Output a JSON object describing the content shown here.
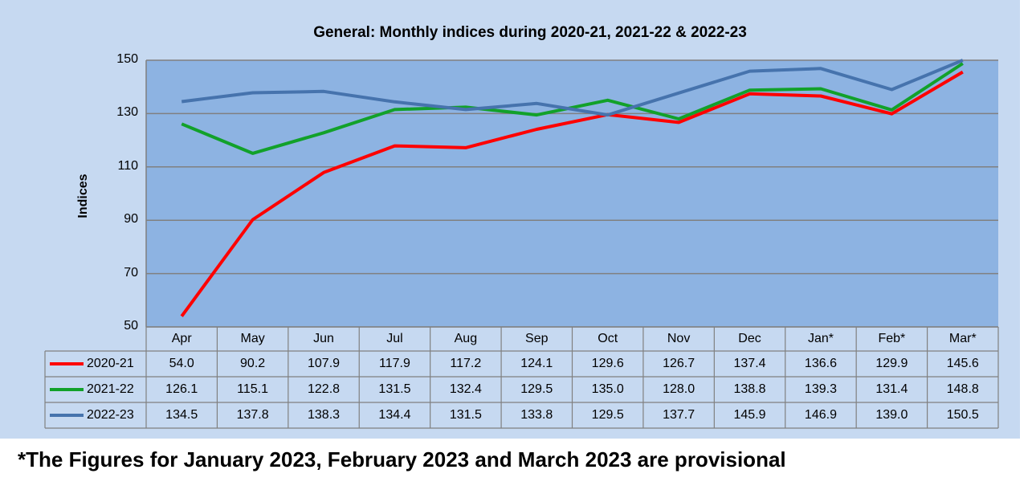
{
  "footnote": "*The Figures for January 2023, February 2023 and March 2023 are provisional",
  "chart_data": {
    "type": "line",
    "title": "General: Monthly indices during 2020-21, 2021-22 & 2022-23",
    "xlabel": "",
    "ylabel": "Indices",
    "ylim": [
      50,
      150
    ],
    "yticks": [
      50,
      70,
      90,
      110,
      130,
      150
    ],
    "grid": true,
    "legend": "data-table",
    "categories": [
      "Apr",
      "May",
      "Jun",
      "Jul",
      "Aug",
      "Sep",
      "Oct",
      "Nov",
      "Dec",
      "Jan*",
      "Feb*",
      "Mar*"
    ],
    "series": [
      {
        "name": "2020-21",
        "color": "#ff0000",
        "values": [
          54.0,
          90.2,
          107.9,
          117.9,
          117.2,
          124.1,
          129.6,
          126.7,
          137.4,
          136.6,
          129.9,
          145.6
        ],
        "labels": [
          "54.0",
          "90.2",
          "107.9",
          "117.9",
          "117.2",
          "124.1",
          "129.6",
          "126.7",
          "137.4",
          "136.6",
          "129.9",
          "145.6"
        ]
      },
      {
        "name": "2021-22",
        "color": "#12a12a",
        "values": [
          126.1,
          115.1,
          122.8,
          131.5,
          132.4,
          129.5,
          135.0,
          128.0,
          138.8,
          139.3,
          131.4,
          148.8
        ],
        "labels": [
          "126.1",
          "115.1",
          "122.8",
          "131.5",
          "132.4",
          "129.5",
          "135.0",
          "128.0",
          "138.8",
          "139.3",
          "131.4",
          "148.8"
        ]
      },
      {
        "name": "2022-23",
        "color": "#4673ad",
        "values": [
          134.5,
          137.8,
          138.3,
          134.4,
          131.5,
          133.8,
          129.5,
          137.7,
          145.9,
          146.9,
          139.0,
          150.5
        ],
        "labels": [
          "134.5",
          "137.8",
          "138.3",
          "134.4",
          "131.5",
          "133.8",
          "129.5",
          "137.7",
          "145.9",
          "146.9",
          "139.0",
          "150.5"
        ]
      }
    ]
  }
}
